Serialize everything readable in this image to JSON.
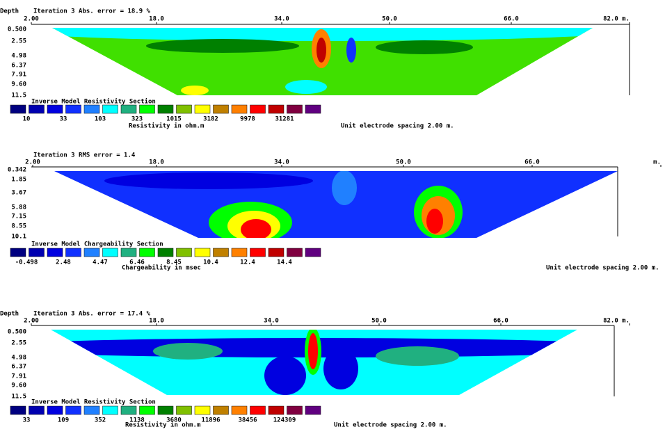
{
  "panels": [
    {
      "depth_label": "Depth",
      "header": "Iteration 3 Abs. error = 18.9 %",
      "x_labels": [
        "2.00",
        "18.0",
        "34.0",
        "50.0",
        "66.0",
        "82.0 m."
      ],
      "depth_labels": [
        "0.500",
        "2.55",
        "4.98",
        "6.37",
        "7.91",
        "9.60",
        "11.5"
      ],
      "legend_title": "Inverse Model Resistivity Section",
      "legend_labels": [
        "10",
        "33",
        "103",
        "323",
        "1015",
        "3182",
        "9978",
        "31281"
      ],
      "unit": "Resistivity in ohm.m",
      "spacing": "Unit electrode spacing 2.00 m."
    },
    {
      "header": "Iteration 3 RMS error = 1.4",
      "x_labels": [
        "2.00",
        "18.0",
        "34.0",
        "50.0",
        "66.0",
        "m."
      ],
      "depth_labels": [
        "0.342",
        "1.85",
        "3.67",
        "5.88",
        "7.15",
        "8.55",
        "10.1"
      ],
      "legend_title": "Inverse Model Chargeability Section",
      "legend_labels": [
        "-0.498",
        "2.48",
        "4.47",
        "6.46",
        "8.45",
        "10.4",
        "12.4",
        "14.4"
      ],
      "unit": "Chargeability in msec",
      "spacing": "Unit electrode spacing 2.00 m."
    },
    {
      "depth_label": "Depth",
      "header": "Iteration 3 Abs. error = 17.4 %",
      "x_labels": [
        "2.00",
        "18.0",
        "34.0",
        "50.0",
        "66.0",
        "82.0 m."
      ],
      "depth_labels": [
        "0.500",
        "2.55",
        "4.98",
        "6.37",
        "7.91",
        "9.60",
        "11.5"
      ],
      "legend_title": "Inverse Model Resistivity Section",
      "legend_labels": [
        "33",
        "109",
        "352",
        "1138",
        "3680",
        "11896",
        "38456",
        "124309"
      ],
      "unit": "Resistivity in ohm.m",
      "spacing": "Unit electrode spacing 2.00 m."
    }
  ]
}
